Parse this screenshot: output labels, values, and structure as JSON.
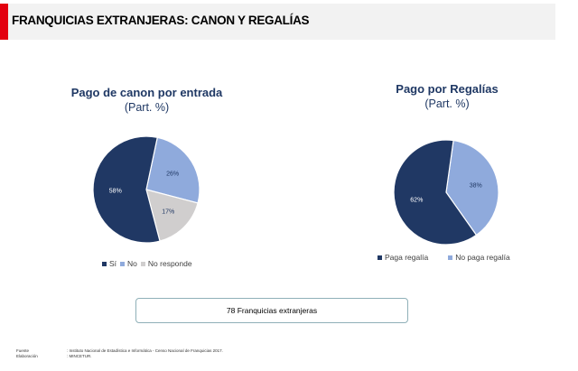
{
  "header": {
    "title": "FRANQUICIAS EXTRANJERAS: CANON Y REGALÍAS",
    "accent_color": "#e3000f",
    "band_color": "#f2f2f2"
  },
  "colors": {
    "dark_navy": "#203864",
    "light_blue": "#8faadc",
    "light_gray": "#d0cece",
    "title_color": "#1f3864"
  },
  "chart_data": [
    {
      "type": "pie",
      "title": "Pago de canon por entrada",
      "subtitle": "(Part. %)",
      "categories": [
        "Sí",
        "No",
        "No responde"
      ],
      "values": [
        58,
        26,
        17
      ],
      "labels": [
        "58%",
        "26%",
        "17%"
      ],
      "colors": [
        "#203864",
        "#8faadc",
        "#d0cece"
      ],
      "legend_position": "bottom"
    },
    {
      "type": "pie",
      "title": "Pago por Regalías",
      "subtitle": "(Part. %)",
      "categories": [
        "Paga regalía",
        "No paga regalía"
      ],
      "values": [
        62,
        38
      ],
      "labels": [
        "62%",
        "38%"
      ],
      "colors": [
        "#203864",
        "#8faadc"
      ],
      "legend_position": "bottom"
    }
  ],
  "summary": {
    "text": "78 Franquicias extranjeras"
  },
  "footer": {
    "source_label": "Fuente",
    "source_value": ": Instituto Nacional de Estadística e Informática - Censo Nacional de Franquicias 2017.",
    "elab_label": "Elaboración",
    "elab_value": ": MINCETUR."
  }
}
